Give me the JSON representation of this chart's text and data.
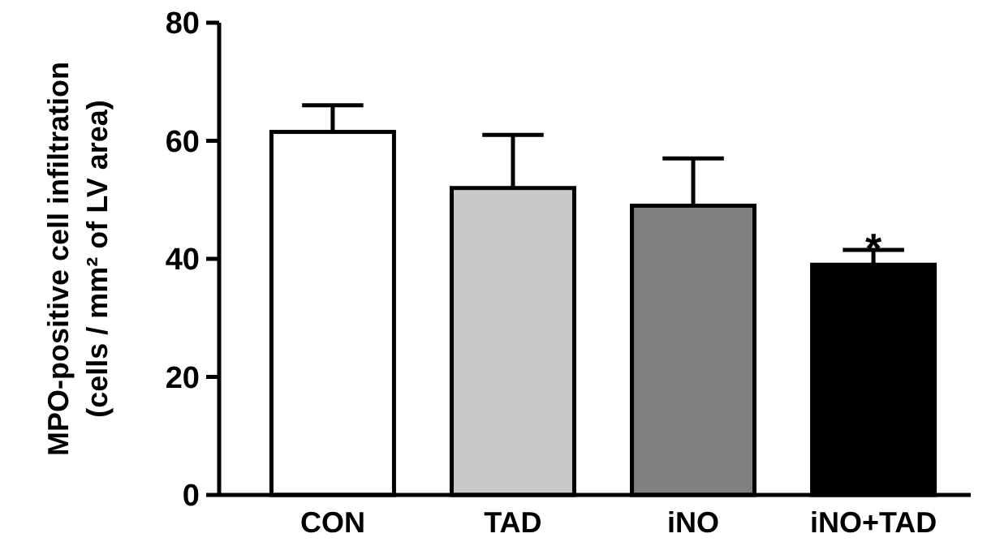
{
  "chart_data": {
    "type": "bar",
    "ylabel": "MPO-positive cell infiltration\n(cells / mm² of LV area)",
    "categories": [
      "CON",
      "TAD",
      "iNO",
      "iNO+TAD"
    ],
    "values": [
      61.5,
      52,
      49,
      39
    ],
    "colors": [
      "#ffffff",
      "#c8c8c8",
      "#808080",
      "#000000"
    ],
    "errors": [
      4.5,
      9,
      8,
      2.5
    ],
    "ylim": [
      0,
      80
    ],
    "yticks": [
      0,
      20,
      40,
      60,
      80
    ],
    "grid": false,
    "annotations": [
      "*"
    ]
  }
}
